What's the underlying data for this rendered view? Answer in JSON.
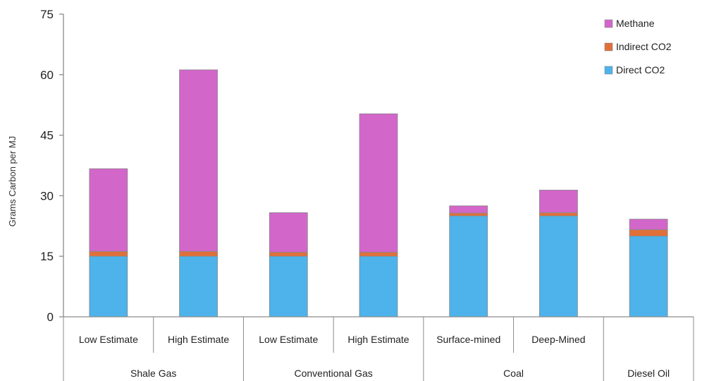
{
  "chart_data": {
    "type": "bar",
    "stacked": true,
    "title": "",
    "ylabel": "Grams Carbon per MJ",
    "xlabel": "",
    "ylim": [
      0,
      75
    ],
    "yticks": [
      0,
      15,
      30,
      45,
      60,
      75
    ],
    "grid": false,
    "legend_position": "top-right",
    "groups": [
      {
        "label": "Shale Gas",
        "categories": [
          "Low Estimate",
          "High Estimate"
        ]
      },
      {
        "label": "Conventional Gas",
        "categories": [
          "Low Estimate",
          "High Estimate"
        ]
      },
      {
        "label": "Coal",
        "categories": [
          "Surface-mined",
          "Deep-Mined"
        ]
      },
      {
        "label": "Diesel Oil",
        "categories": [
          ""
        ]
      }
    ],
    "series": [
      {
        "name": "Direct CO2",
        "color": "#4db3ea",
        "values": [
          15,
          15,
          15,
          15,
          25,
          25,
          20
        ]
      },
      {
        "name": "Indirect CO2",
        "color": "#e0703a",
        "values": [
          1.2,
          1.2,
          1,
          1,
          0.7,
          0.8,
          1.6
        ]
      },
      {
        "name": "Methane",
        "color": "#d266c9",
        "values": [
          20.5,
          45,
          9.8,
          34.3,
          1.8,
          5.6,
          2.6
        ]
      }
    ],
    "legend_order": [
      "Methane",
      "Indirect CO2",
      "Direct CO2"
    ]
  }
}
